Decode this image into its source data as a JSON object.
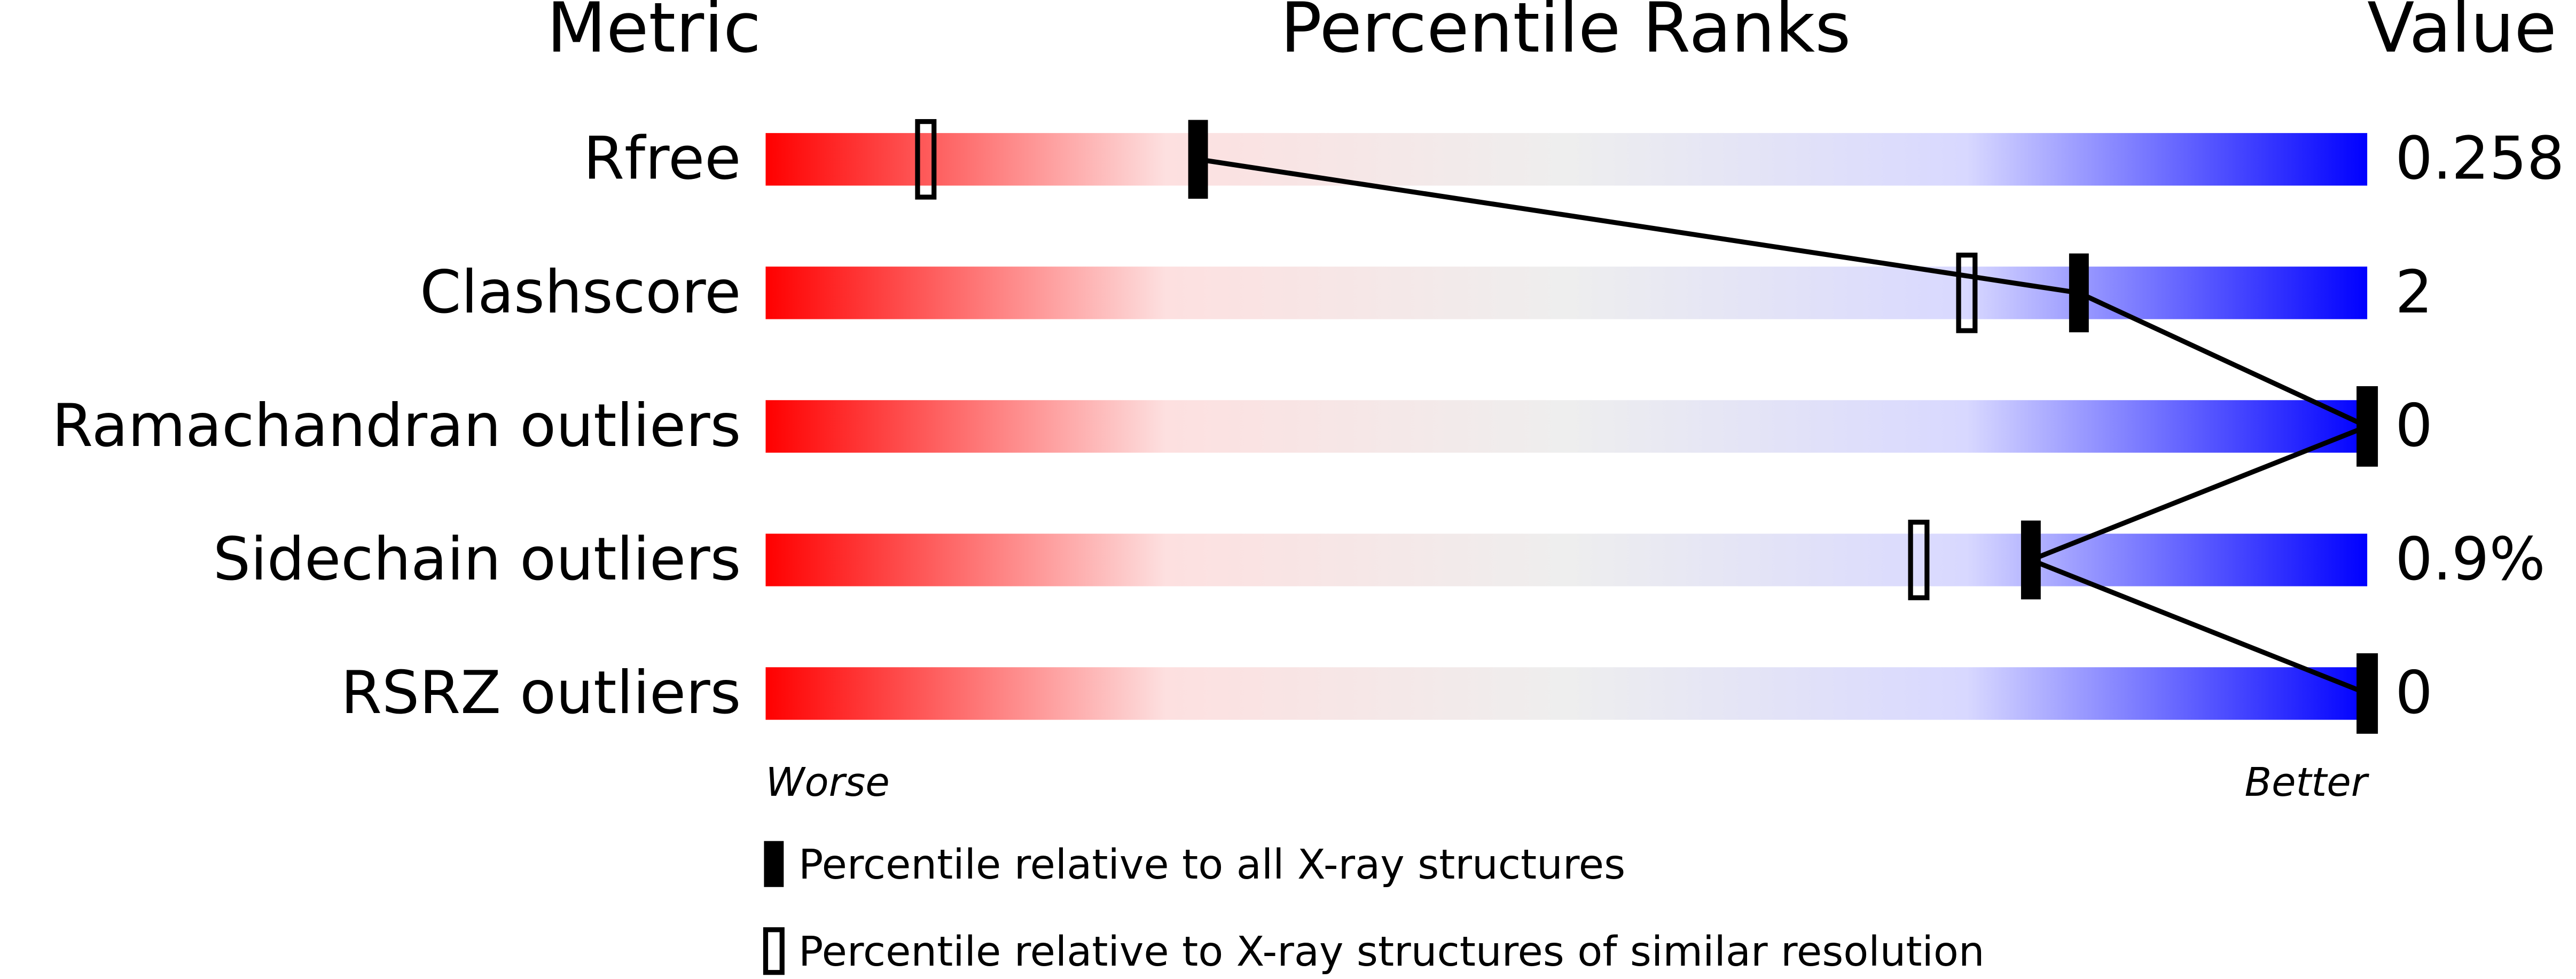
{
  "chart_data": {
    "type": "percentile_slider",
    "headers": {
      "metric": "Metric",
      "percentile": "Percentile Ranks",
      "value": "Value"
    },
    "categories": [
      "Rfree",
      "Clashscore",
      "Ramachandran outliers",
      "Sidechain outliers",
      "RSRZ outliers"
    ],
    "metric_values": [
      "0.258",
      "2",
      "0",
      "0.9%",
      "0"
    ],
    "series": [
      {
        "name": "Percentile relative to all X-ray structures",
        "style": "filled",
        "color": "#000000",
        "values": [
          27,
          82,
          100,
          79,
          100
        ]
      },
      {
        "name": "Percentile relative to X-ray structures of similar resolution",
        "style": "open",
        "color": "#000000",
        "values": [
          10,
          75,
          100,
          72,
          100
        ]
      }
    ],
    "xlim": [
      0,
      100
    ],
    "scale_labels": {
      "low": "Worse",
      "high": "Better"
    },
    "gradient": [
      "#ff0000",
      "#fde0e0",
      "#eeeeee",
      "#d8d8ff",
      "#0000ff"
    ]
  }
}
